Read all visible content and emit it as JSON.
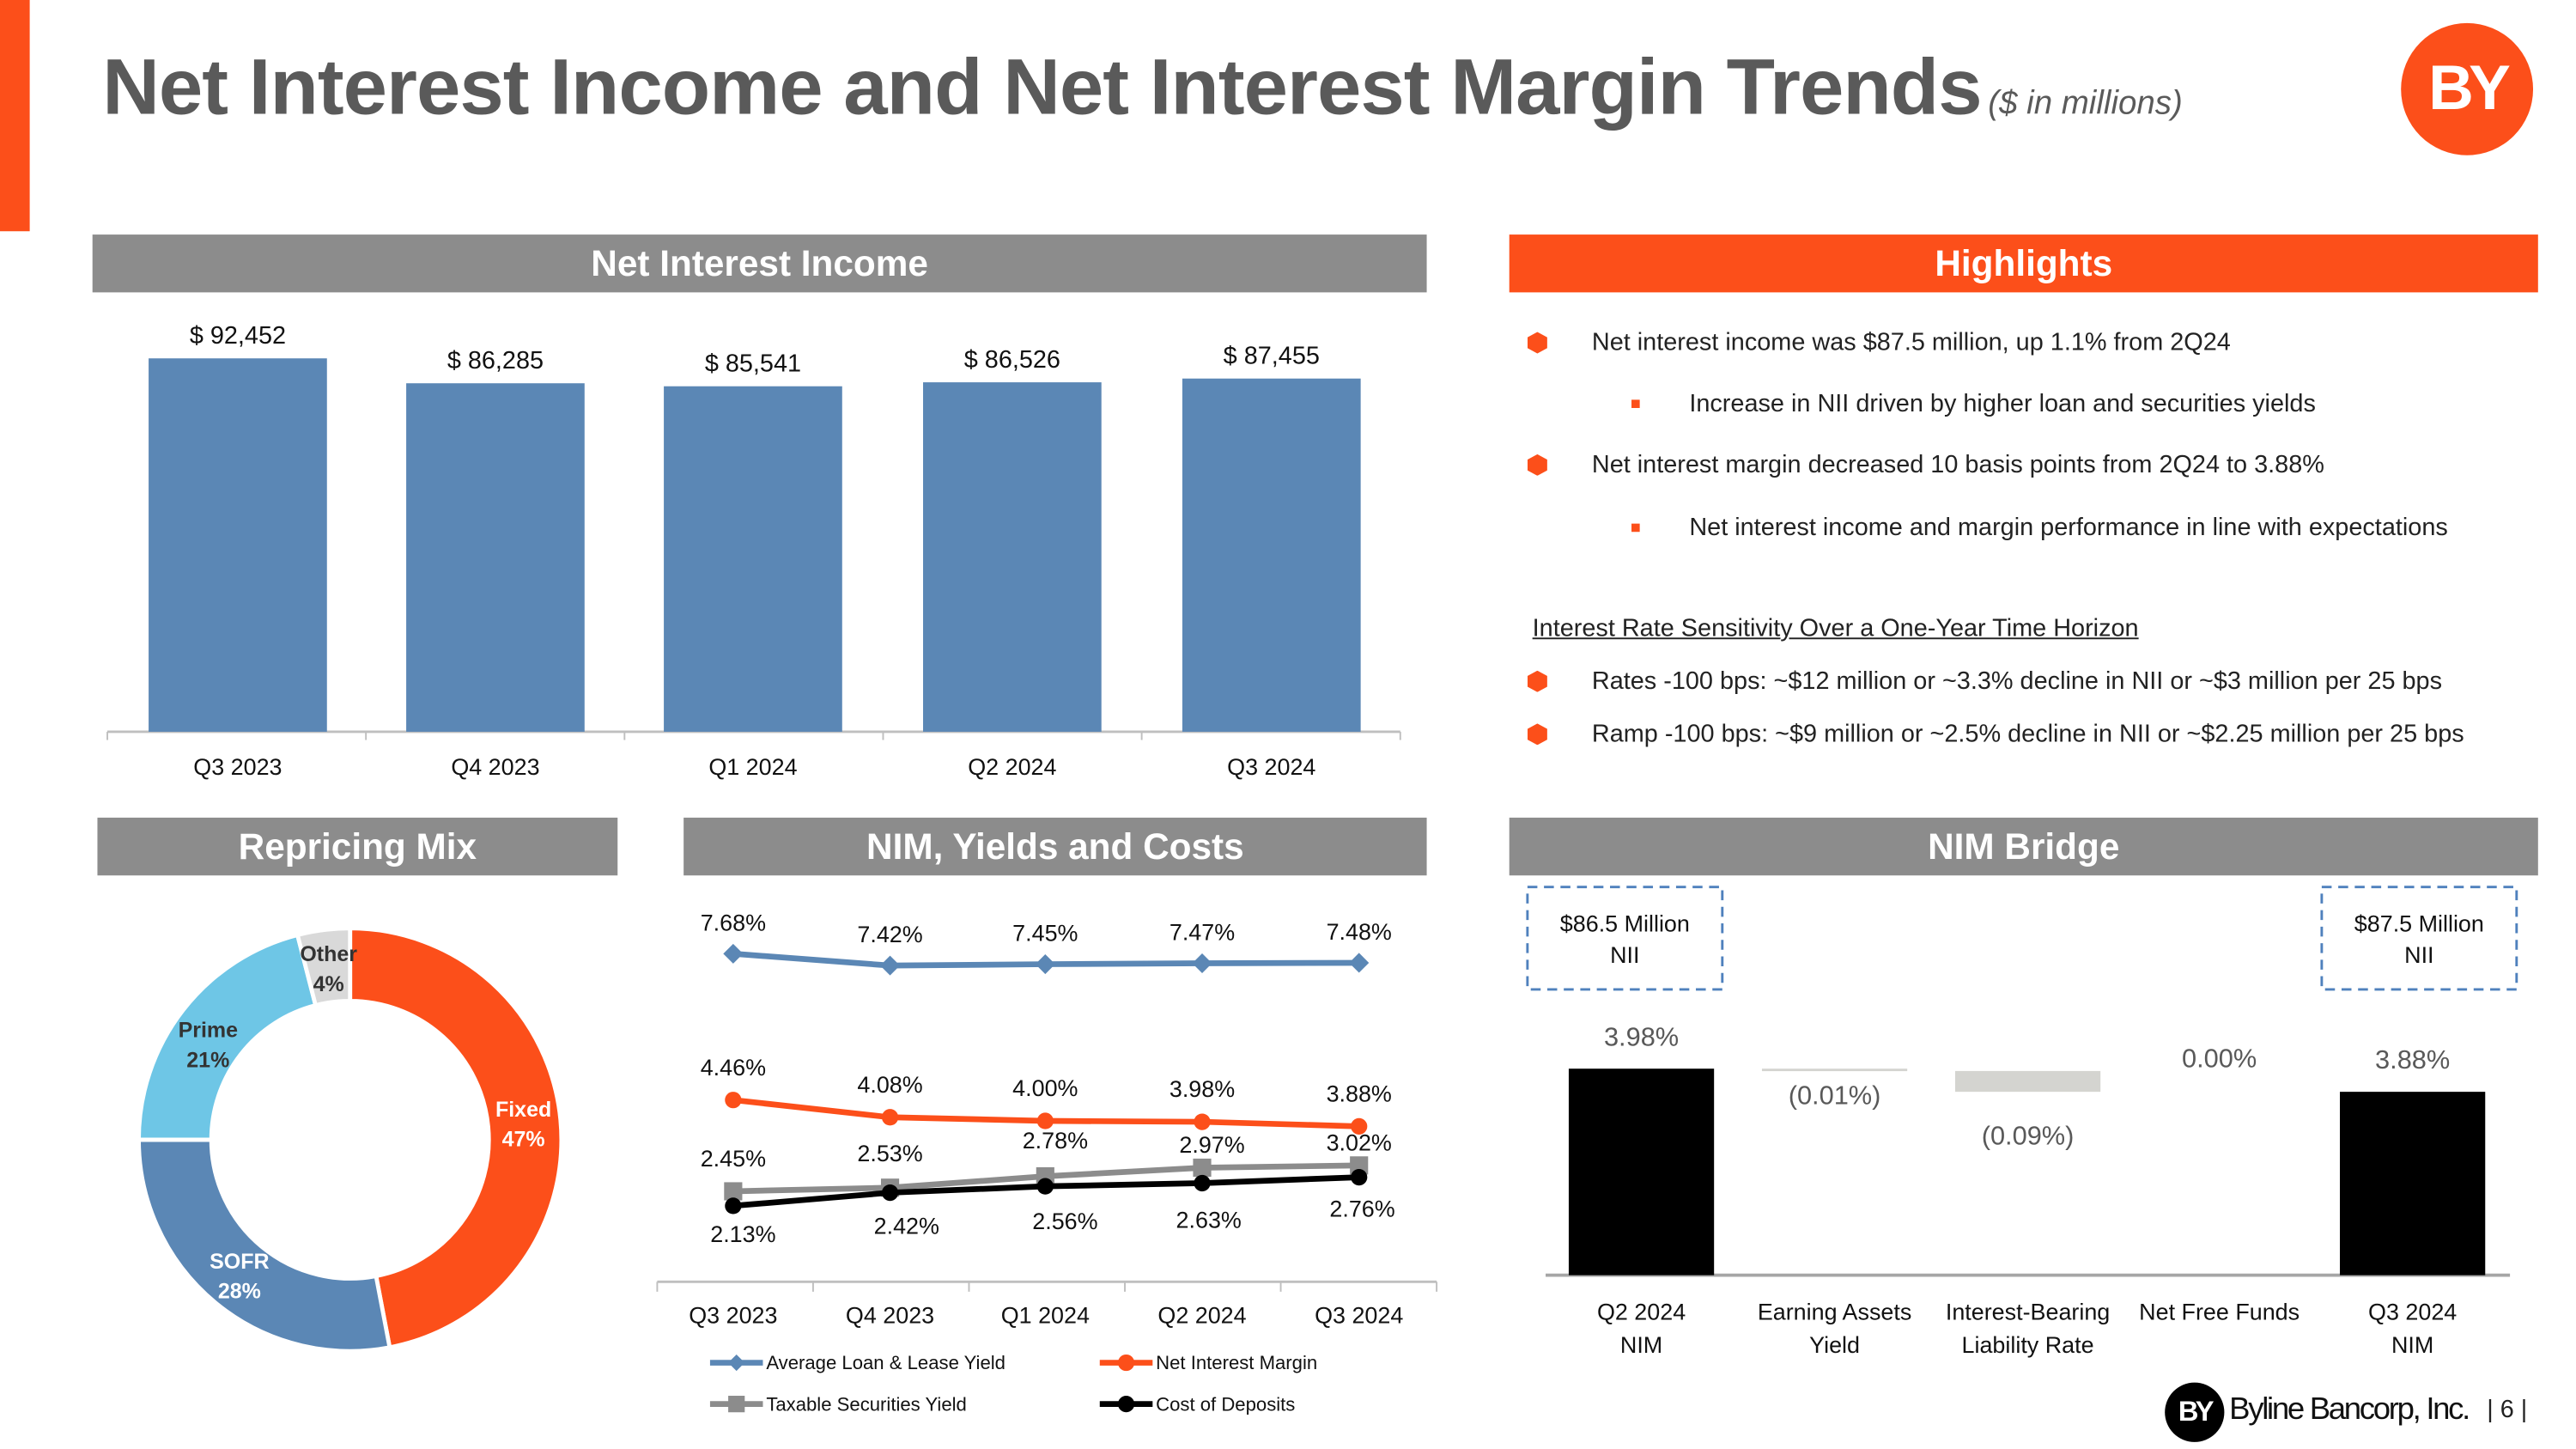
{
  "title": "Net Interest Income and Net Interest Margin Trends",
  "subtitle": "($ in millions)",
  "logo_text": "BY",
  "colors": {
    "orange": "#fc4f1a",
    "gray_header": "#8c8c8c",
    "bar_blue": "#5b87b5",
    "light_blue": "#6ec6e6",
    "light_gray": "#d9d9d9"
  },
  "headers": {
    "nii": "Net Interest Income",
    "highlights": "Highlights",
    "repricing": "Repricing Mix",
    "nim_yields": "NIM, Yields and Costs",
    "nim_bridge": "NIM Bridge"
  },
  "highlights": {
    "bullets": [
      "Net interest income was $87.5 million, up 1.1% from 2Q24",
      "Increase in NII driven by higher loan and securities yields",
      "Net interest margin decreased 10 basis points from 2Q24 to 3.88%",
      "Net interest income and margin performance in line with expectations"
    ],
    "sensitivity_title": "Interest Rate Sensitivity Over a One-Year Time Horizon",
    "sensitivity": [
      "Rates -100 bps: ~$12 million or ~3.3% decline in NII or ~$3 million per 25 bps",
      "Ramp -100 bps: ~$9 million or ~2.5% decline in NII or ~$2.25 million per 25 bps"
    ]
  },
  "chart_data": [
    {
      "type": "bar",
      "title": "Net Interest Income",
      "categories": [
        "Q3 2023",
        "Q4 2023",
        "Q1 2024",
        "Q2 2024",
        "Q3 2024"
      ],
      "values": [
        92452,
        86285,
        85541,
        86526,
        87455
      ],
      "labels": [
        "$ 92,452",
        "$ 86,285",
        "$ 85,541",
        "$ 86,526",
        "$ 87,455"
      ],
      "ylim": [
        0,
        100000
      ],
      "color": "#5b87b5"
    },
    {
      "type": "pie",
      "title": "Repricing Mix",
      "donut": true,
      "slices": [
        {
          "name": "Fixed",
          "value": 47,
          "label": "47%",
          "color": "#fc4f1a"
        },
        {
          "name": "SOFR",
          "value": 28,
          "label": "28%",
          "color": "#5b87b5"
        },
        {
          "name": "Prime",
          "value": 21,
          "label": "21%",
          "color": "#6ec6e6"
        },
        {
          "name": "Other",
          "value": 4,
          "label": "4%",
          "color": "#d9d9d9"
        }
      ]
    },
    {
      "type": "line",
      "title": "NIM, Yields and Costs",
      "categories": [
        "Q3 2023",
        "Q4 2023",
        "Q1 2024",
        "Q2 2024",
        "Q3 2024"
      ],
      "legend": "bottom",
      "series": [
        {
          "name": "Average Loan & Lease Yield",
          "values": [
            7.68,
            7.42,
            7.45,
            7.47,
            7.48
          ],
          "labels": [
            "7.68%",
            "7.42%",
            "7.45%",
            "7.47%",
            "7.48%"
          ],
          "color": "#5b87b5",
          "marker": "diamond"
        },
        {
          "name": "Net Interest Margin",
          "values": [
            4.46,
            4.08,
            4.0,
            3.98,
            3.88
          ],
          "labels": [
            "4.46%",
            "4.08%",
            "4.00%",
            "3.98%",
            "3.88%"
          ],
          "color": "#fc4f1a",
          "marker": "circle"
        },
        {
          "name": "Taxable Securities Yield",
          "values": [
            2.45,
            2.53,
            2.78,
            2.97,
            3.02
          ],
          "labels": [
            "2.45%",
            "2.53%",
            "2.78%",
            "2.97%",
            "3.02%"
          ],
          "color": "#8c8c8c",
          "marker": "square"
        },
        {
          "name": "Cost of Deposits",
          "values": [
            2.13,
            2.42,
            2.56,
            2.63,
            2.76
          ],
          "labels": [
            "2.13%",
            "2.42%",
            "2.56%",
            "2.63%",
            "2.76%"
          ],
          "color": "#000000",
          "marker": "circle"
        }
      ]
    },
    {
      "type": "bar",
      "subtype": "waterfall",
      "title": "NIM Bridge",
      "categories": [
        [
          "Q2 2024",
          "NIM"
        ],
        [
          "Earning Assets",
          "Yield"
        ],
        [
          "Interest-Bearing",
          "Liability Rate"
        ],
        [
          "Net Free Funds",
          ""
        ],
        [
          "Q3 2024",
          "NIM"
        ]
      ],
      "values": [
        3.98,
        -0.01,
        -0.09,
        0.0,
        3.88
      ],
      "labels": [
        "3.98%",
        "(0.01%)",
        "(0.09%)",
        "0.00%",
        "3.88%"
      ],
      "callouts": [
        [
          "$86.5 Million",
          "NII"
        ],
        [
          "$87.5 Million",
          "NII"
        ]
      ]
    }
  ],
  "footer": {
    "company": "Byline Bancorp, Inc.",
    "page": "6"
  }
}
